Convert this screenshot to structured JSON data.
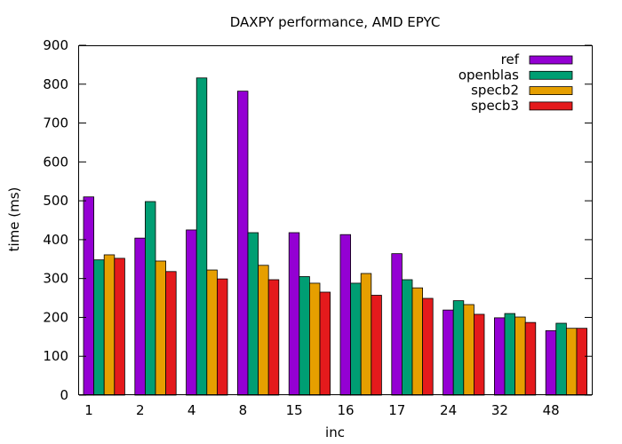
{
  "chart_data": {
    "type": "bar",
    "title": "DAXPY performance, AMD EPYC",
    "xlabel": "inc",
    "ylabel": "time (ms)",
    "ylim": [
      0,
      900
    ],
    "yticks": [
      0,
      100,
      200,
      300,
      400,
      500,
      600,
      700,
      800,
      900
    ],
    "grid": false,
    "legend_position": "top-right",
    "categories": [
      "1",
      "2",
      "4",
      "8",
      "15",
      "16",
      "17",
      "24",
      "32",
      "48"
    ],
    "series": [
      {
        "name": "ref",
        "color": "#9400d3",
        "values": [
          510,
          404,
          425,
          782,
          418,
          413,
          364,
          219,
          199,
          166
        ]
      },
      {
        "name": "openblas",
        "color": "#009e73",
        "values": [
          348,
          498,
          816,
          418,
          305,
          288,
          297,
          243,
          210,
          185
        ]
      },
      {
        "name": "specb2",
        "color": "#e69f00",
        "values": [
          361,
          345,
          322,
          334,
          288,
          313,
          276,
          233,
          201,
          172
        ]
      },
      {
        "name": "specb3",
        "color": "#e41a1c",
        "values": [
          352,
          318,
          299,
          297,
          265,
          257,
          249,
          208,
          187,
          172
        ]
      }
    ]
  }
}
